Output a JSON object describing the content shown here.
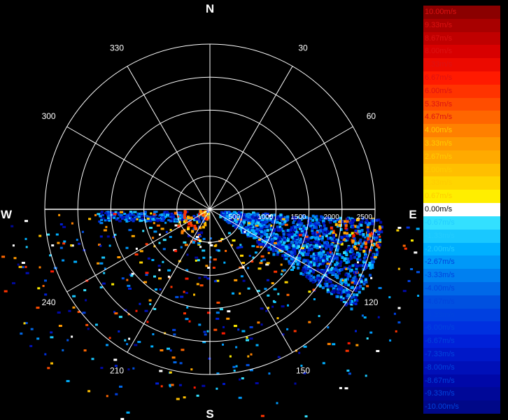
{
  "chart_data": {
    "type": "polar-radar",
    "compass": {
      "north": "N",
      "east": "E",
      "south": "S",
      "west": "W"
    },
    "angle_labels": [
      {
        "deg": 30,
        "text": "30"
      },
      {
        "deg": 60,
        "text": "60"
      },
      {
        "deg": 120,
        "text": "120"
      },
      {
        "deg": 150,
        "text": "150"
      },
      {
        "deg": 210,
        "text": "210"
      },
      {
        "deg": 240,
        "text": "240"
      },
      {
        "deg": 300,
        "text": "300"
      },
      {
        "deg": 330,
        "text": "330"
      }
    ],
    "range_rings": [
      500,
      1000,
      1500,
      2000,
      2500
    ],
    "range_labels": [
      "500",
      "1000",
      "1500",
      "2000",
      "2500"
    ],
    "range_max": 2500,
    "scan_sector_deg": [
      90,
      270
    ],
    "legend": [
      {
        "label": "10.00m/s",
        "color": "#8b0000"
      },
      {
        "label": "9.33m/s",
        "color": "#a80000"
      },
      {
        "label": "8.67m/s",
        "color": "#c00000"
      },
      {
        "label": "8.00m/s",
        "color": "#d80000"
      },
      {
        "label": "7.33m/s",
        "color": "#ec0a00"
      },
      {
        "label": "6.67m/s",
        "color": "#ff1a00"
      },
      {
        "label": "6.00m/s",
        "color": "#ff3300"
      },
      {
        "label": "5.33m/s",
        "color": "#ff4d00"
      },
      {
        "label": "4.67m/s",
        "color": "#ff6600"
      },
      {
        "label": "4.00m/s",
        "color": "#ff8000"
      },
      {
        "label": "3.33m/s",
        "color": "#ff9900"
      },
      {
        "label": "2.67m/s",
        "color": "#ffaa00"
      },
      {
        "label": "2.00m/s",
        "color": "#ffbf00"
      },
      {
        "label": "1.33m/s",
        "color": "#ffd500"
      },
      {
        "label": "0.67m/s",
        "color": "#ffee00"
      },
      {
        "label": "0.00m/s",
        "color": "#ffffff"
      },
      {
        "label": "-0.67m/s",
        "color": "#33e0ff"
      },
      {
        "label": "-1.33m/s",
        "color": "#19c8ff"
      },
      {
        "label": "-2.00m/s",
        "color": "#00b0ff"
      },
      {
        "label": "-2.67m/s",
        "color": "#0098f8"
      },
      {
        "label": "-3.33m/s",
        "color": "#0080f0"
      },
      {
        "label": "-4.00m/s",
        "color": "#0068e8"
      },
      {
        "label": "-4.67m/s",
        "color": "#0050e0"
      },
      {
        "label": "-5.33m/s",
        "color": "#0040e0"
      },
      {
        "label": "-6.00m/s",
        "color": "#0030e0"
      },
      {
        "label": "-6.67m/s",
        "color": "#0020d8"
      },
      {
        "label": "-7.33m/s",
        "color": "#0018c8"
      },
      {
        "label": "-8.00m/s",
        "color": "#0010b8"
      },
      {
        "label": "-8.67m/s",
        "color": "#0008a8"
      },
      {
        "label": "-9.33m/s",
        "color": "#000898"
      },
      {
        "label": "-10.00m/s",
        "color": "#000888"
      }
    ],
    "label_colors": {
      "positive": "#dd1111",
      "positive_low": "#ffcc00",
      "zero": "#ffffff",
      "negative_high": "#22ccff",
      "negative": "#0044dd"
    }
  }
}
